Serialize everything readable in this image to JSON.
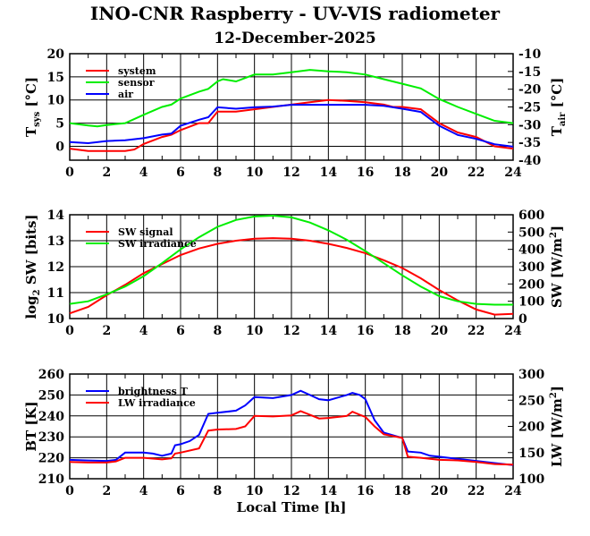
{
  "title": "INO-CNR Raspberry - UV-VIS radiometer",
  "subtitle": "12-December-2025",
  "chart_data": [
    {
      "type": "line",
      "ylabel_left": "T",
      "ylabel_left_sub": "sys",
      "ylabel_left_unit": "[°C]",
      "ylabel_right": "T",
      "ylabel_right_sub": "air",
      "ylabel_right_unit": "[°C]",
      "xlim": [
        0,
        24
      ],
      "xticks": [
        0,
        2,
        4,
        6,
        8,
        10,
        12,
        14,
        16,
        18,
        20,
        22,
        24
      ],
      "ylim_left": [
        -3,
        20
      ],
      "yticks_left": [
        0,
        5,
        10,
        15,
        20
      ],
      "ylim_right": [
        -40,
        -10
      ],
      "yticks_right": [
        -40,
        -35,
        -30,
        -25,
        -20,
        -15,
        -10
      ],
      "grid": true,
      "legend_position": "top-left",
      "series": [
        {
          "name": "system",
          "axis": "left",
          "color": "#ff0000",
          "x": [
            0,
            1,
            1.5,
            2,
            3,
            3.5,
            4,
            5,
            5.5,
            6,
            7,
            7.5,
            8,
            9,
            10,
            11,
            12,
            13,
            14,
            15,
            16,
            17,
            17.5,
            18,
            19,
            20,
            21,
            22,
            23,
            24
          ],
          "y": [
            -0.5,
            -1,
            -1,
            -1,
            -1,
            -0.7,
            0.5,
            2,
            2.5,
            3.5,
            5,
            5,
            7.5,
            7.5,
            8,
            8.5,
            9,
            9.5,
            10,
            9.8,
            9.5,
            9,
            8.5,
            8.5,
            8,
            5,
            3,
            2,
            0,
            -0.5
          ]
        },
        {
          "name": "sensor",
          "axis": "left",
          "color": "#00ee00",
          "x": [
            0,
            1,
            1.5,
            2,
            3,
            4,
            5,
            5.5,
            6,
            7,
            7.5,
            8,
            8.3,
            9,
            10,
            11,
            12,
            13,
            14,
            15,
            16,
            17,
            18,
            19,
            20,
            21,
            22,
            23,
            24
          ],
          "y": [
            5,
            4.5,
            4.3,
            4.6,
            5,
            6.8,
            8.5,
            9,
            10.3,
            11.8,
            12.4,
            14,
            14.5,
            14,
            15.5,
            15.5,
            16,
            16.5,
            16.2,
            16,
            15.5,
            14.5,
            13.5,
            12.5,
            10.2,
            8.5,
            7,
            5.5,
            5
          ]
        },
        {
          "name": "air",
          "axis": "right",
          "color": "#0000ff",
          "x": [
            0,
            1,
            2,
            3,
            4,
            5,
            5.5,
            6,
            7,
            7.5,
            8,
            9,
            10,
            11,
            12,
            13,
            14,
            15,
            16,
            17,
            18,
            19,
            20,
            21,
            22,
            23,
            24
          ],
          "y": [
            -34.9,
            -35.2,
            -34.6,
            -34.4,
            -33.8,
            -32.8,
            -32.5,
            -30.3,
            -28.6,
            -27.9,
            -25.1,
            -25.5,
            -25.1,
            -24.9,
            -24.4,
            -24.4,
            -24.4,
            -24.4,
            -24.4,
            -24.7,
            -25.5,
            -26.4,
            -30.3,
            -32.9,
            -34.0,
            -35.5,
            -36.2
          ]
        }
      ]
    },
    {
      "type": "line",
      "ylabel_left": "log",
      "ylabel_left_sub": "2",
      "ylabel_left_unit": "SW [bits]",
      "ylabel_right": "SW [W/m",
      "ylabel_right_sup": "2",
      "ylabel_right_unit": "]",
      "xlim": [
        0,
        24
      ],
      "xticks": [
        0,
        2,
        4,
        6,
        8,
        10,
        12,
        14,
        16,
        18,
        20,
        22,
        24
      ],
      "ylim_left": [
        10,
        14
      ],
      "yticks_left": [
        10,
        11,
        12,
        13,
        14
      ],
      "ylim_right": [
        0,
        600
      ],
      "yticks_right": [
        0,
        100,
        200,
        300,
        400,
        500,
        600
      ],
      "grid": true,
      "legend_position": "top-left",
      "series": [
        {
          "name": "SW signal",
          "axis": "left",
          "color": "#ff0000",
          "x": [
            0,
            1,
            2,
            3,
            4,
            5,
            6,
            7,
            8,
            9,
            10,
            11,
            12,
            13,
            14,
            15,
            16,
            17,
            18,
            19,
            20,
            21,
            22,
            23,
            24
          ],
          "y": [
            10.2,
            10.45,
            10.9,
            11.3,
            11.75,
            12.1,
            12.45,
            12.7,
            12.88,
            13.0,
            13.08,
            13.1,
            13.08,
            13.0,
            12.88,
            12.72,
            12.52,
            12.25,
            11.95,
            11.55,
            11.1,
            10.7,
            10.35,
            10.15,
            10.18
          ]
        },
        {
          "name": "SW irradiance",
          "axis": "right",
          "color": "#00ee00",
          "x": [
            0,
            1,
            2,
            3,
            4,
            5,
            6,
            7,
            8,
            9,
            10,
            11,
            12,
            13,
            14,
            15,
            16,
            17,
            18,
            19,
            20,
            21,
            22,
            23,
            24
          ],
          "y": [
            85,
            100,
            140,
            185,
            245,
            320,
            400,
            470,
            530,
            570,
            590,
            595,
            585,
            555,
            510,
            455,
            390,
            320,
            250,
            185,
            130,
            100,
            85,
            80,
            80
          ]
        }
      ]
    },
    {
      "type": "line",
      "xlabel": "Local Time [h]",
      "ylabel_left": "BT [K]",
      "ylabel_right": "LW [W/m",
      "ylabel_right_sup": "2",
      "ylabel_right_unit": "]",
      "xlim": [
        0,
        24
      ],
      "xticks": [
        0,
        2,
        4,
        6,
        8,
        10,
        12,
        14,
        16,
        18,
        20,
        22,
        24
      ],
      "ylim_left": [
        210,
        260
      ],
      "yticks_left": [
        210,
        220,
        230,
        240,
        250,
        260
      ],
      "ylim_right": [
        100,
        300
      ],
      "yticks_right": [
        100,
        150,
        200,
        250,
        300
      ],
      "grid": true,
      "legend_position": "top-left",
      "series": [
        {
          "name": "brightness T",
          "axis": "left",
          "color": "#0000ff",
          "x": [
            0,
            1,
            2,
            2.5,
            3,
            4,
            4.5,
            5,
            5.5,
            5.7,
            6,
            6.5,
            7,
            7.5,
            8,
            9,
            9.5,
            10,
            11,
            12,
            12.5,
            13,
            13.5,
            14,
            15,
            15.3,
            15.7,
            16,
            16.5,
            17,
            18,
            18.3,
            19,
            19.5,
            20,
            21,
            22,
            23,
            24
          ],
          "y": [
            219,
            218.7,
            218.5,
            219,
            222.5,
            222.5,
            222,
            221,
            222,
            226,
            226.5,
            228,
            231,
            241,
            241.5,
            242.5,
            245,
            249,
            248.5,
            250,
            252,
            250,
            248,
            247.5,
            250,
            251,
            250,
            248,
            238,
            232,
            229.5,
            223,
            222.5,
            221,
            220.5,
            219.5,
            218.5,
            217.5,
            216.5
          ]
        },
        {
          "name": "LW irradiance",
          "axis": "right",
          "color": "#ff0000",
          "x": [
            0,
            1,
            2,
            2.5,
            3,
            4,
            5,
            5.5,
            5.7,
            6,
            7,
            7.5,
            8,
            9,
            9.5,
            10,
            11,
            12,
            12.5,
            13,
            13.5,
            14,
            15,
            15.3,
            15.7,
            16,
            16.5,
            17,
            18,
            18.3,
            19,
            20,
            21,
            22,
            23,
            24
          ],
          "y": [
            132,
            131,
            131,
            133,
            140,
            140,
            137,
            139,
            148,
            150,
            158,
            192,
            194,
            195,
            200,
            220,
            219,
            221,
            229,
            222,
            215,
            216,
            220,
            228,
            222,
            218,
            200,
            185,
            178,
            142,
            140,
            136,
            135,
            132,
            128,
            127
          ]
        }
      ]
    }
  ]
}
